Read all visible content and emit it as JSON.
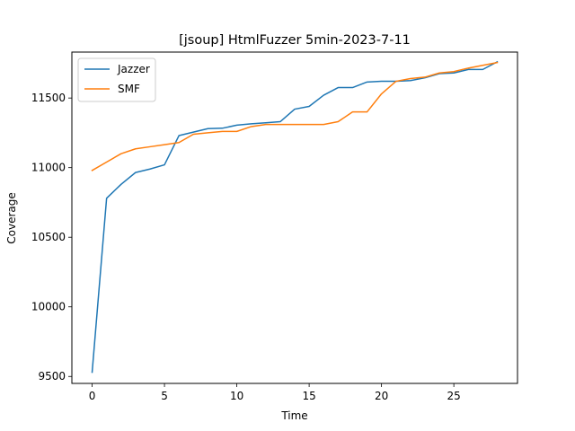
{
  "chart_data": {
    "type": "line",
    "title": "[jsoup] HtmlFuzzer 5min-2023-7-11",
    "xlabel": "Time",
    "ylabel": "Coverage",
    "xlim": [
      -1.4,
      29.4
    ],
    "ylim": [
      9450,
      11830
    ],
    "xticks": [
      0,
      5,
      10,
      15,
      20,
      25
    ],
    "yticks": [
      9500,
      10000,
      10500,
      11000,
      11500
    ],
    "legend_position": "upper-left",
    "grid": false,
    "x": [
      0,
      1,
      2,
      3,
      4,
      5,
      6,
      7,
      8,
      9,
      10,
      11,
      12,
      13,
      14,
      15,
      16,
      17,
      18,
      19,
      20,
      21,
      22,
      23,
      24,
      25,
      26,
      27,
      28
    ],
    "series": [
      {
        "name": "Jazzer",
        "color": "#1f77b4",
        "values": [
          9530,
          10780,
          10880,
          10965,
          10990,
          11020,
          11230,
          11255,
          11280,
          11283,
          11305,
          11315,
          11322,
          11330,
          11420,
          11440,
          11520,
          11575,
          11575,
          11615,
          11620,
          11620,
          11625,
          11645,
          11675,
          11680,
          11705,
          11705,
          11760
        ]
      },
      {
        "name": "SMF",
        "color": "#ff7f0e",
        "values": [
          10980,
          11040,
          11100,
          11135,
          11150,
          11165,
          11180,
          11240,
          11250,
          11260,
          11260,
          11295,
          11310,
          11310,
          11310,
          11310,
          11310,
          11330,
          11400,
          11400,
          11530,
          11620,
          11640,
          11650,
          11680,
          11690,
          11715,
          11735,
          11755
        ]
      }
    ]
  }
}
